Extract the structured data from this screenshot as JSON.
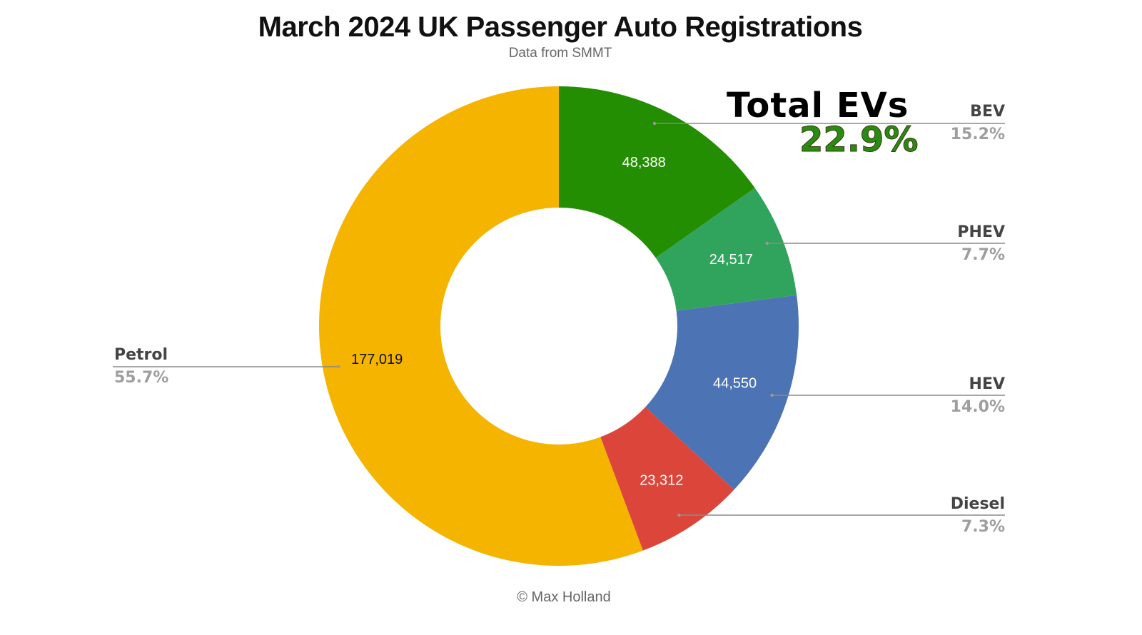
{
  "header": {
    "title": "March 2024 UK Passenger Auto Registrations",
    "subtitle": "Data from SMMT"
  },
  "footer": {
    "credit": "© Max Holland"
  },
  "callout": {
    "title": "Total EVs",
    "value": "22.9%",
    "color": "#2a8a12"
  },
  "legend": [
    {
      "name": "BEV",
      "pct": "15.2%"
    },
    {
      "name": "PHEV",
      "pct": "7.7%"
    },
    {
      "name": "HEV",
      "pct": "14.0%"
    },
    {
      "name": "Diesel",
      "pct": "7.3%"
    },
    {
      "name": "Petrol",
      "pct": "55.7%"
    }
  ],
  "slices": [
    {
      "name": "BEV",
      "label": "48,388",
      "color": "#248e02",
      "text_color": "#ffffff"
    },
    {
      "name": "PHEV",
      "label": "24,517",
      "color": "#30a35d",
      "text_color": "#ffffff"
    },
    {
      "name": "HEV",
      "label": "44,550",
      "color": "#4c73b3",
      "text_color": "#ffffff"
    },
    {
      "name": "Diesel",
      "label": "23,312",
      "color": "#dc463a",
      "text_color": "#ffffff"
    },
    {
      "name": "Petrol",
      "label": "177,019",
      "color": "#f4b400",
      "text_color": "#111111"
    }
  ],
  "chart_data": {
    "type": "pie",
    "subtype": "donut",
    "title": "March 2024 UK Passenger Auto Registrations",
    "subtitle": "Data from SMMT",
    "categories": [
      "BEV",
      "PHEV",
      "HEV",
      "Diesel",
      "Petrol"
    ],
    "values": [
      48388,
      24517,
      44550,
      23312,
      177019
    ],
    "percentages": [
      15.2,
      7.7,
      14.0,
      7.3,
      55.7
    ],
    "colors": [
      "#248e02",
      "#30a35d",
      "#4c73b3",
      "#dc463a",
      "#f4b400"
    ],
    "annotations": [
      {
        "text": "Total EVs",
        "value": "22.9%"
      }
    ],
    "legend_position": "labeled-leaders",
    "credit": "© Max Holland"
  }
}
